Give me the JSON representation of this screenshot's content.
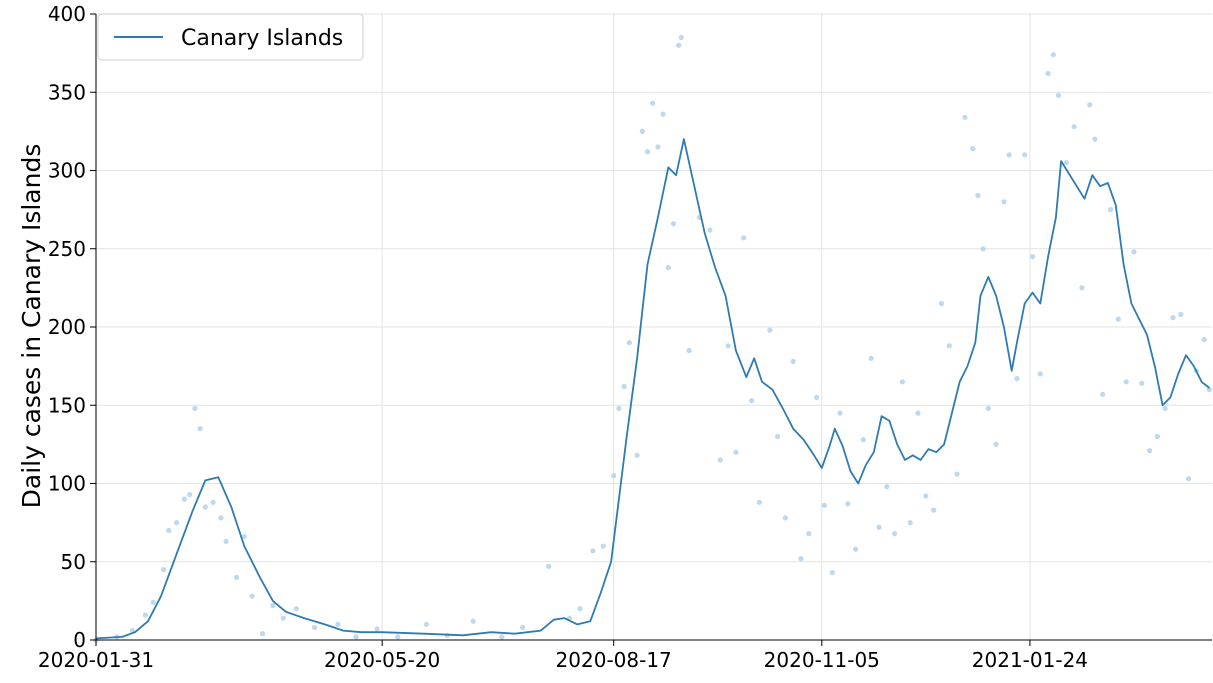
{
  "chart_data": {
    "type": "line",
    "ylabel": "Daily cases in Canary Islands",
    "xlabel": "",
    "title": "",
    "x_range": [
      "2020-01-31",
      "2021-03-24"
    ],
    "ylim": [
      0,
      400
    ],
    "x_ticks": [
      "2020-01-31",
      "2020-05-20",
      "2020-08-17",
      "2020-11-05",
      "2021-01-24"
    ],
    "y_ticks": [
      0,
      50,
      100,
      150,
      200,
      250,
      300,
      350,
      400
    ],
    "grid": true,
    "legend": {
      "placement": "top-left",
      "entries": [
        "Canary Islands"
      ]
    },
    "colors": {
      "line": "#2e7bb1",
      "points": "#a9cbe4",
      "grid": "#e3e3e3"
    },
    "series": [
      {
        "name": "Canary Islands",
        "style": "smoothed-line",
        "points": [
          [
            "2020-01-31",
            1
          ],
          [
            "2020-02-10",
            2
          ],
          [
            "2020-02-15",
            5
          ],
          [
            "2020-02-20",
            12
          ],
          [
            "2020-02-25",
            28
          ],
          [
            "2020-03-02",
            55
          ],
          [
            "2020-03-08",
            82
          ],
          [
            "2020-03-13",
            102
          ],
          [
            "2020-03-18",
            104
          ],
          [
            "2020-03-23",
            85
          ],
          [
            "2020-03-28",
            60
          ],
          [
            "2020-04-03",
            40
          ],
          [
            "2020-04-08",
            25
          ],
          [
            "2020-04-13",
            18
          ],
          [
            "2020-04-20",
            14
          ],
          [
            "2020-04-28",
            10
          ],
          [
            "2020-05-05",
            6
          ],
          [
            "2020-05-12",
            5
          ],
          [
            "2020-05-20",
            5
          ],
          [
            "2020-06-05",
            4
          ],
          [
            "2020-06-20",
            3
          ],
          [
            "2020-07-01",
            5
          ],
          [
            "2020-07-10",
            4
          ],
          [
            "2020-07-20",
            6
          ],
          [
            "2020-07-25",
            13
          ],
          [
            "2020-07-29",
            14
          ],
          [
            "2020-08-03",
            10
          ],
          [
            "2020-08-08",
            12
          ],
          [
            "2020-08-12",
            30
          ],
          [
            "2020-08-16",
            50
          ],
          [
            "2020-08-19",
            90
          ],
          [
            "2020-08-22",
            130
          ],
          [
            "2020-08-26",
            180
          ],
          [
            "2020-08-30",
            240
          ],
          [
            "2020-09-03",
            270
          ],
          [
            "2020-09-07",
            302
          ],
          [
            "2020-09-10",
            297
          ],
          [
            "2020-09-13",
            320
          ],
          [
            "2020-09-17",
            290
          ],
          [
            "2020-09-21",
            260
          ],
          [
            "2020-09-25",
            238
          ],
          [
            "2020-09-29",
            220
          ],
          [
            "2020-10-03",
            185
          ],
          [
            "2020-10-07",
            168
          ],
          [
            "2020-10-10",
            180
          ],
          [
            "2020-10-13",
            165
          ],
          [
            "2020-10-17",
            160
          ],
          [
            "2020-10-21",
            148
          ],
          [
            "2020-10-25",
            135
          ],
          [
            "2020-10-29",
            128
          ],
          [
            "2020-11-02",
            118
          ],
          [
            "2020-11-05",
            110
          ],
          [
            "2020-11-08",
            124
          ],
          [
            "2020-11-10",
            135
          ],
          [
            "2020-11-13",
            124
          ],
          [
            "2020-11-16",
            108
          ],
          [
            "2020-11-19",
            100
          ],
          [
            "2020-11-22",
            112
          ],
          [
            "2020-11-25",
            120
          ],
          [
            "2020-11-28",
            143
          ],
          [
            "2020-12-01",
            140
          ],
          [
            "2020-12-04",
            125
          ],
          [
            "2020-12-07",
            115
          ],
          [
            "2020-12-10",
            118
          ],
          [
            "2020-12-13",
            115
          ],
          [
            "2020-12-16",
            122
          ],
          [
            "2020-12-19",
            120
          ],
          [
            "2020-12-22",
            125
          ],
          [
            "2020-12-25",
            145
          ],
          [
            "2020-12-28",
            165
          ],
          [
            "2020-12-31",
            175
          ],
          [
            "2021-01-03",
            190
          ],
          [
            "2021-01-05",
            220
          ],
          [
            "2021-01-08",
            232
          ],
          [
            "2021-01-11",
            220
          ],
          [
            "2021-01-14",
            200
          ],
          [
            "2021-01-17",
            172
          ],
          [
            "2021-01-19",
            190
          ],
          [
            "2021-01-22",
            215
          ],
          [
            "2021-01-25",
            222
          ],
          [
            "2021-01-28",
            215
          ],
          [
            "2021-01-31",
            245
          ],
          [
            "2021-02-03",
            270
          ],
          [
            "2021-02-05",
            306
          ],
          [
            "2021-02-08",
            298
          ],
          [
            "2021-02-11",
            290
          ],
          [
            "2021-02-14",
            282
          ],
          [
            "2021-02-17",
            297
          ],
          [
            "2021-02-20",
            290
          ],
          [
            "2021-02-23",
            292
          ],
          [
            "2021-02-26",
            278
          ],
          [
            "2021-03-01",
            240
          ],
          [
            "2021-03-04",
            215
          ],
          [
            "2021-03-07",
            205
          ],
          [
            "2021-03-10",
            195
          ],
          [
            "2021-03-13",
            175
          ],
          [
            "2021-03-16",
            150
          ],
          [
            "2021-03-19",
            155
          ],
          [
            "2021-03-22",
            170
          ],
          [
            "2021-03-25",
            182
          ],
          [
            "2021-03-28",
            175
          ],
          [
            "2021-03-31",
            165
          ],
          [
            "2021-04-03",
            161
          ]
        ]
      },
      {
        "name": "",
        "style": "scatter",
        "points": [
          [
            "2020-01-31",
            0
          ],
          [
            "2020-02-08",
            2
          ],
          [
            "2020-02-14",
            6
          ],
          [
            "2020-02-19",
            16
          ],
          [
            "2020-02-22",
            24
          ],
          [
            "2020-02-26",
            45
          ],
          [
            "2020-02-28",
            70
          ],
          [
            "2020-03-02",
            75
          ],
          [
            "2020-03-05",
            90
          ],
          [
            "2020-03-07",
            93
          ],
          [
            "2020-03-09",
            148
          ],
          [
            "2020-03-11",
            135
          ],
          [
            "2020-03-13",
            85
          ],
          [
            "2020-03-16",
            88
          ],
          [
            "2020-03-19",
            78
          ],
          [
            "2020-03-21",
            63
          ],
          [
            "2020-03-25",
            40
          ],
          [
            "2020-03-28",
            66
          ],
          [
            "2020-03-31",
            28
          ],
          [
            "2020-04-04",
            4
          ],
          [
            "2020-04-08",
            22
          ],
          [
            "2020-04-12",
            14
          ],
          [
            "2020-04-17",
            20
          ],
          [
            "2020-04-24",
            8
          ],
          [
            "2020-05-03",
            10
          ],
          [
            "2020-05-10",
            2
          ],
          [
            "2020-05-18",
            7
          ],
          [
            "2020-05-26",
            2
          ],
          [
            "2020-06-06",
            10
          ],
          [
            "2020-06-14",
            3
          ],
          [
            "2020-06-24",
            12
          ],
          [
            "2020-07-05",
            2
          ],
          [
            "2020-07-13",
            8
          ],
          [
            "2020-07-23",
            47
          ],
          [
            "2020-07-31",
            14
          ],
          [
            "2020-08-04",
            20
          ],
          [
            "2020-08-09",
            57
          ],
          [
            "2020-08-13",
            60
          ],
          [
            "2020-08-17",
            105
          ],
          [
            "2020-08-19",
            148
          ],
          [
            "2020-08-21",
            162
          ],
          [
            "2020-08-23",
            190
          ],
          [
            "2020-08-26",
            118
          ],
          [
            "2020-08-28",
            325
          ],
          [
            "2020-08-30",
            312
          ],
          [
            "2020-09-01",
            343
          ],
          [
            "2020-09-03",
            315
          ],
          [
            "2020-09-05",
            336
          ],
          [
            "2020-09-07",
            238
          ],
          [
            "2020-09-09",
            266
          ],
          [
            "2020-09-11",
            380
          ],
          [
            "2020-09-12",
            385
          ],
          [
            "2020-09-15",
            185
          ],
          [
            "2020-09-19",
            270
          ],
          [
            "2020-09-23",
            262
          ],
          [
            "2020-09-27",
            115
          ],
          [
            "2020-09-30",
            188
          ],
          [
            "2020-10-03",
            120
          ],
          [
            "2020-10-06",
            257
          ],
          [
            "2020-10-09",
            153
          ],
          [
            "2020-10-12",
            88
          ],
          [
            "2020-10-16",
            198
          ],
          [
            "2020-10-19",
            130
          ],
          [
            "2020-10-22",
            78
          ],
          [
            "2020-10-25",
            178
          ],
          [
            "2020-10-28",
            52
          ],
          [
            "2020-10-31",
            68
          ],
          [
            "2020-11-03",
            155
          ],
          [
            "2020-11-06",
            86
          ],
          [
            "2020-11-09",
            43
          ],
          [
            "2020-11-12",
            145
          ],
          [
            "2020-11-15",
            87
          ],
          [
            "2020-11-18",
            58
          ],
          [
            "2020-11-21",
            128
          ],
          [
            "2020-11-24",
            180
          ],
          [
            "2020-11-27",
            72
          ],
          [
            "2020-11-30",
            98
          ],
          [
            "2020-12-03",
            68
          ],
          [
            "2020-12-06",
            165
          ],
          [
            "2020-12-09",
            75
          ],
          [
            "2020-12-12",
            145
          ],
          [
            "2020-12-15",
            92
          ],
          [
            "2020-12-18",
            83
          ],
          [
            "2020-12-21",
            215
          ],
          [
            "2020-12-24",
            188
          ],
          [
            "2020-12-27",
            106
          ],
          [
            "2020-12-30",
            334
          ],
          [
            "2021-01-02",
            314
          ],
          [
            "2021-01-04",
            284
          ],
          [
            "2021-01-06",
            250
          ],
          [
            "2021-01-08",
            148
          ],
          [
            "2021-01-11",
            125
          ],
          [
            "2021-01-14",
            280
          ],
          [
            "2021-01-16",
            310
          ],
          [
            "2021-01-19",
            167
          ],
          [
            "2021-01-22",
            310
          ],
          [
            "2021-01-25",
            245
          ],
          [
            "2021-01-28",
            170
          ],
          [
            "2021-01-31",
            362
          ],
          [
            "2021-02-02",
            374
          ],
          [
            "2021-02-04",
            348
          ],
          [
            "2021-02-07",
            305
          ],
          [
            "2021-02-10",
            328
          ],
          [
            "2021-02-13",
            225
          ],
          [
            "2021-02-16",
            342
          ],
          [
            "2021-02-18",
            320
          ],
          [
            "2021-02-21",
            157
          ],
          [
            "2021-02-24",
            275
          ],
          [
            "2021-02-27",
            205
          ],
          [
            "2021-03-02",
            165
          ],
          [
            "2021-03-05",
            248
          ],
          [
            "2021-03-08",
            164
          ],
          [
            "2021-03-11",
            121
          ],
          [
            "2021-03-14",
            130
          ],
          [
            "2021-03-17",
            148
          ],
          [
            "2021-03-20",
            206
          ],
          [
            "2021-03-23",
            208
          ],
          [
            "2021-03-26",
            103
          ],
          [
            "2021-03-29",
            172
          ],
          [
            "2021-04-01",
            192
          ],
          [
            "2021-04-03",
            160
          ]
        ]
      }
    ]
  }
}
